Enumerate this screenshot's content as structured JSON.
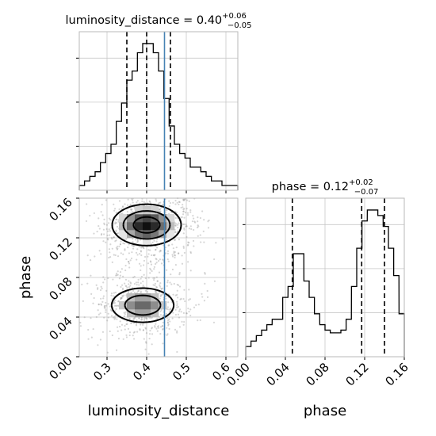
{
  "chart_data": [
    {
      "type": "histogram",
      "panel": "marginal",
      "parameter": "luminosity_distance",
      "title": {
        "prefix": "luminosity_distance = 0.40",
        "plus": "+0.06",
        "minus": "−0.05"
      },
      "xlim": [
        0.23,
        0.63
      ],
      "bin_width": 0.0133,
      "bins_x_start": [
        0.23,
        0.2433,
        0.2567,
        0.27,
        0.2833,
        0.2967,
        0.31,
        0.3233,
        0.3367,
        0.35,
        0.3633,
        0.3767,
        0.39,
        0.4033,
        0.4167,
        0.43,
        0.4433,
        0.4567,
        0.47,
        0.4833,
        0.4967,
        0.51,
        0.5233,
        0.5367,
        0.55,
        0.5633,
        0.5767,
        0.59,
        0.6033,
        0.6167
      ],
      "counts": [
        0,
        1,
        2,
        3,
        5,
        7,
        9,
        14,
        18,
        23,
        25,
        29,
        31,
        31,
        29,
        25,
        19,
        13,
        9,
        7,
        6,
        4,
        4,
        3,
        2,
        1,
        1,
        0,
        0,
        0
      ],
      "quantiles": [
        0.35,
        0.4,
        0.46
      ],
      "truth": 0.445,
      "xticks": [
        0.3,
        0.4,
        0.5,
        0.6
      ]
    },
    {
      "type": "histogram",
      "panel": "marginal",
      "parameter": "phase",
      "title": {
        "prefix": "phase = 0.12",
        "plus": "+0.02",
        "minus": "−0.07"
      },
      "xlim": [
        0.0,
        0.16
      ],
      "bin_width": 0.0053,
      "bins_x_start": [
        0.0,
        0.0053,
        0.0107,
        0.016,
        0.0213,
        0.0267,
        0.032,
        0.0373,
        0.0427,
        0.048,
        0.0533,
        0.0587,
        0.064,
        0.0693,
        0.0747,
        0.08,
        0.0853,
        0.0907,
        0.096,
        0.1013,
        0.1067,
        0.112,
        0.1173,
        0.1227,
        0.128,
        0.1333,
        0.1387,
        0.144,
        0.1493,
        0.1547
      ],
      "counts": [
        2,
        4,
        6,
        8,
        10,
        12,
        12,
        20,
        24,
        36,
        36,
        26,
        20,
        14,
        10,
        8,
        7,
        7,
        8,
        12,
        24,
        38,
        48,
        52,
        52,
        50,
        46,
        38,
        28,
        14
      ],
      "quantiles": [
        0.047,
        0.117,
        0.14
      ],
      "xticks": [
        0.0,
        0.04,
        0.08,
        0.12,
        0.16
      ]
    },
    {
      "type": "contour",
      "panel": "2d",
      "x_parameter": "luminosity_distance",
      "y_parameter": "phase",
      "xlim": [
        0.23,
        0.63
      ],
      "ylim": [
        0.0,
        0.16
      ],
      "truth_x": 0.445,
      "modes": [
        {
          "center_x": 0.4,
          "center_y": 0.133,
          "sigma_x": 0.05,
          "sigma_y": 0.012,
          "weight": 1.0
        },
        {
          "center_x": 0.39,
          "center_y": 0.052,
          "sigma_x": 0.05,
          "sigma_y": 0.011,
          "weight": 0.75
        }
      ],
      "xticks": [
        0.3,
        0.4,
        0.5,
        0.6
      ],
      "yticks": [
        0.0,
        0.04,
        0.08,
        0.12,
        0.16
      ],
      "xlabel": "luminosity_distance",
      "ylabel": "phase"
    }
  ],
  "labels": {
    "x_ld": "luminosity_distance",
    "x_phase": "phase",
    "y_phase": "phase"
  },
  "colors": {
    "line": "#000000",
    "truth": "#4682b4",
    "grid": "#c8c8c8",
    "scatter": "#8a8a8a",
    "density": "#555555"
  }
}
